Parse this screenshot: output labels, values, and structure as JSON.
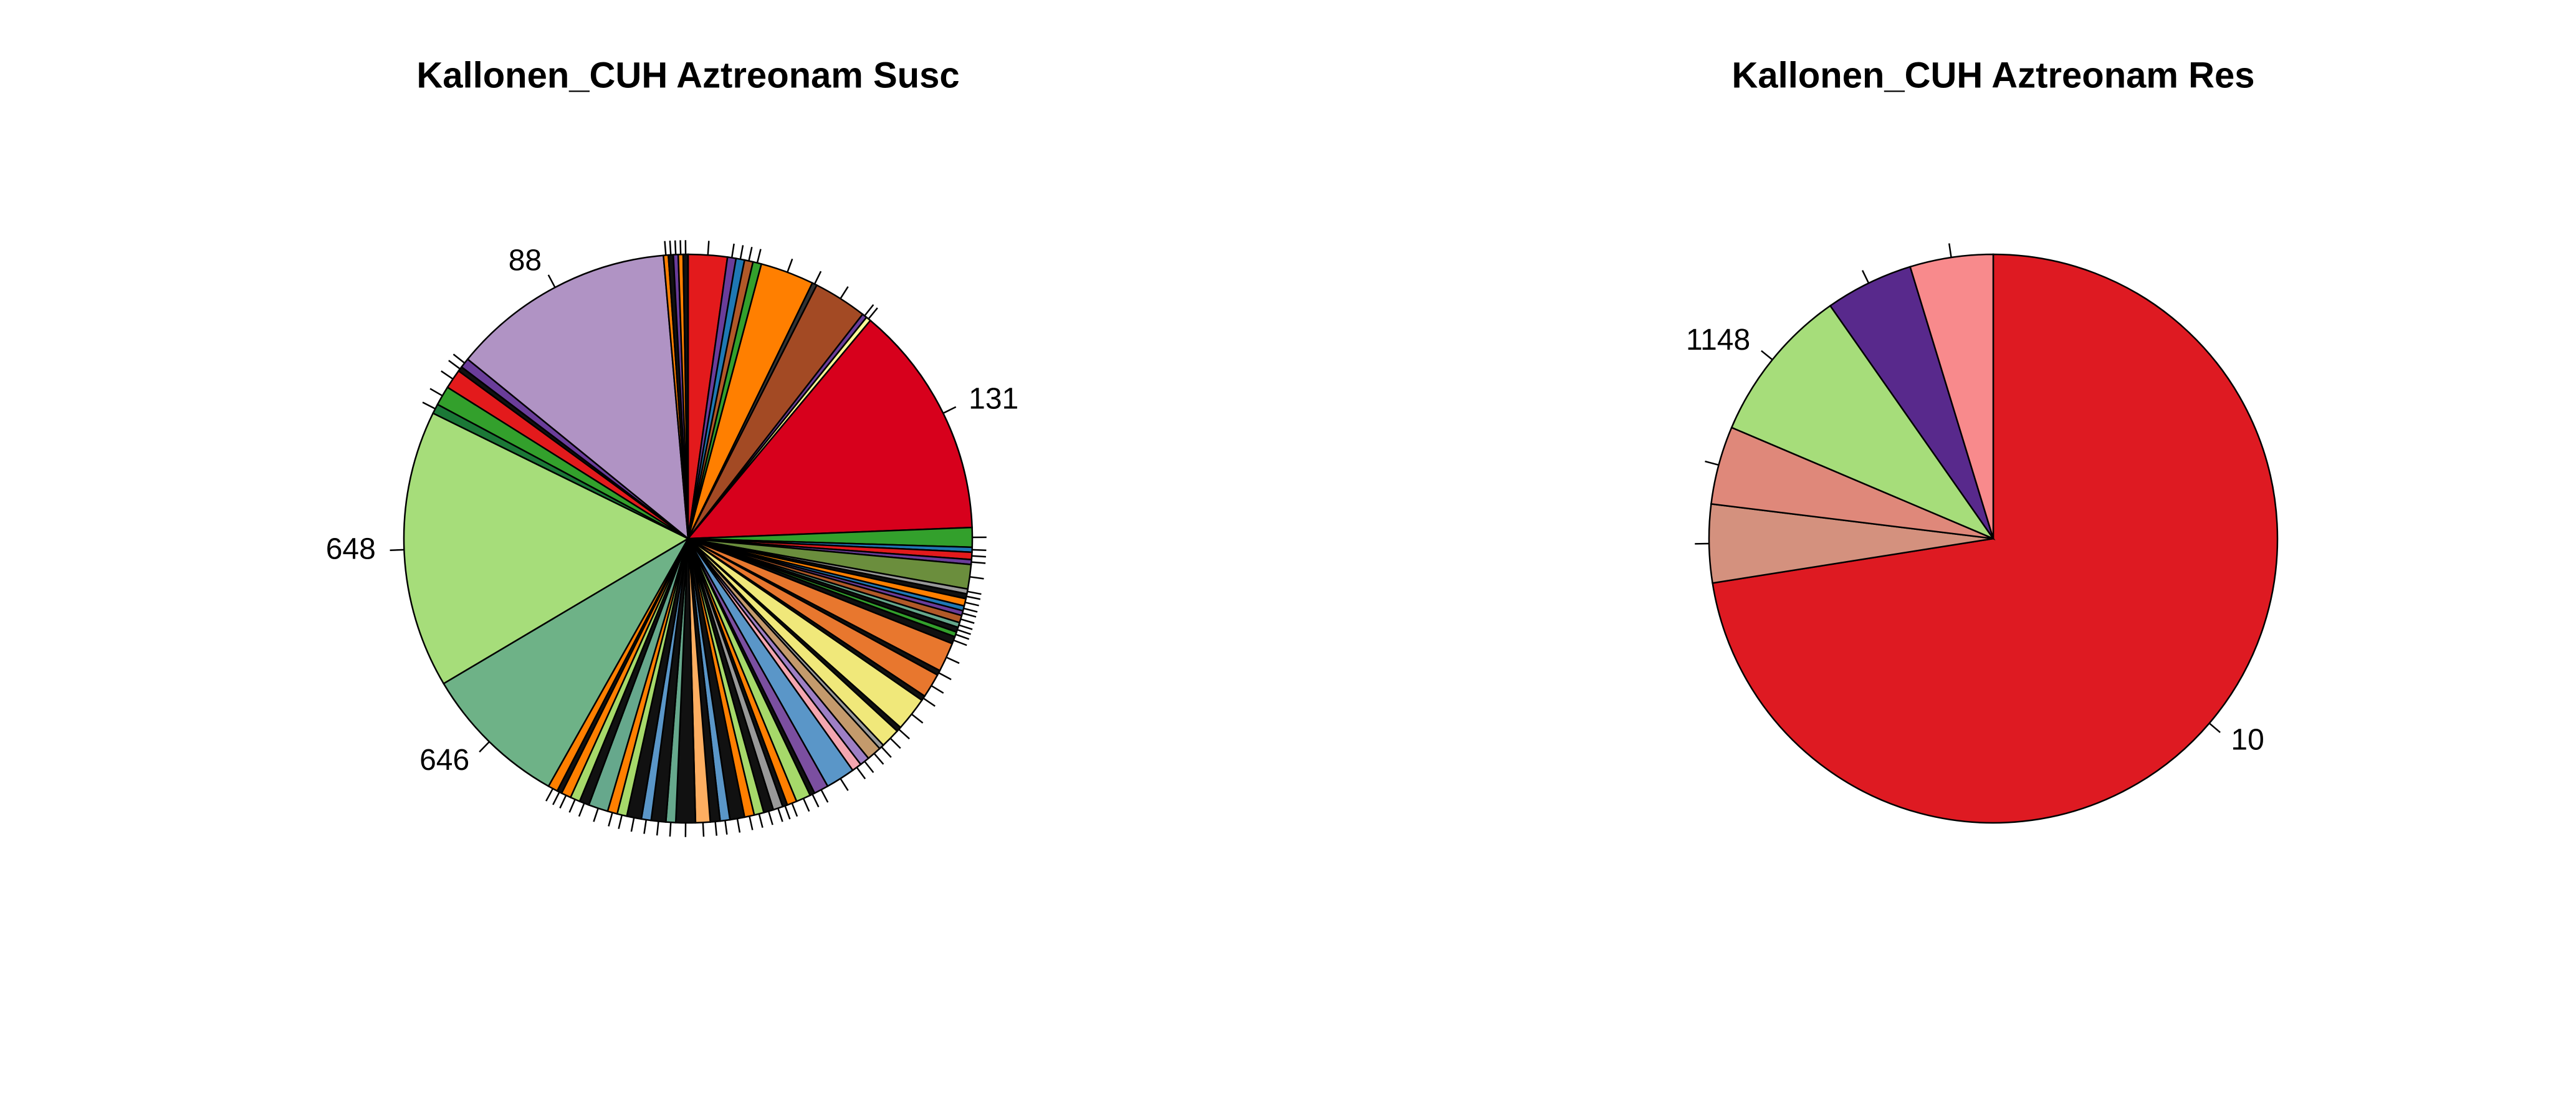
{
  "chart_data": [
    {
      "type": "pie",
      "title": "Kallonen_CUH Aztreonam Susc",
      "categories": [
        null,
        null,
        null,
        null,
        null,
        null,
        null,
        null,
        null,
        null,
        "131",
        null,
        null,
        null,
        null,
        null,
        null,
        null,
        null,
        null,
        null,
        null,
        null,
        null,
        null,
        null,
        null,
        null,
        null,
        null,
        null,
        null,
        null,
        null,
        null,
        null,
        null,
        null,
        null,
        null,
        null,
        null,
        null,
        null,
        null,
        null,
        null,
        null,
        null,
        null,
        null,
        null,
        null,
        null,
        null,
        null,
        null,
        null,
        null,
        null,
        null,
        null,
        null,
        null,
        "646",
        "648",
        null,
        null,
        null,
        null,
        null,
        "88",
        null,
        null,
        null,
        null,
        null
      ],
      "values": [
        8,
        1.75,
        1.75,
        1.75,
        1.75,
        11,
        1,
        11,
        1,
        1,
        48,
        4,
        1,
        1.5,
        1,
        5,
        1,
        1,
        1.5,
        1,
        1,
        1.5,
        1,
        1,
        1,
        1.5,
        6,
        1,
        5,
        1,
        7,
        1,
        4,
        1,
        3,
        2,
        2,
        6,
        3,
        1,
        3,
        2,
        1,
        2,
        2,
        2,
        2,
        3,
        2,
        2,
        3,
        4,
        2,
        3,
        2,
        3,
        2,
        2,
        4,
        2,
        2,
        2,
        1,
        2,
        30,
        57,
        2,
        4,
        4,
        1,
        2,
        46,
        1,
        1,
        1,
        1,
        1
      ],
      "colors": [
        "#e31a1c",
        "#6a3d9a",
        "#1f78b4",
        "#b15928",
        "#33a02c",
        "#ff7f00",
        "#333333",
        "#a34a24",
        "#6a3d9a",
        "#ffff99",
        "#d7001c",
        "#33a02c",
        "#1f78b4",
        "#e31a1c",
        "#6a3d9a",
        "#6b8e3d",
        "#999999",
        "#111111",
        "#ff7f00",
        "#1f78b4",
        "#6a3d9a",
        "#b15928",
        "#66a88c",
        "#111111",
        "#33a02c",
        "#111111",
        "#e8772e",
        "#111111",
        "#e8772e",
        "#111111",
        "#f0e87a",
        "#111111",
        "#f0e87a",
        "#999999",
        "#c49a6c",
        "#9e7fc4",
        "#f4a6b0",
        "#5a96c8",
        "#7b4fa0",
        "#111111",
        "#a6d96a",
        "#ff7f00",
        "#111111",
        "#999999",
        "#111111",
        "#a6d96a",
        "#ff7f00",
        "#111111",
        "#5a96c8",
        "#111111",
        "#fdae61",
        "#111111",
        "#66a88c",
        "#111111",
        "#5a96c8",
        "#111111",
        "#a6d96a",
        "#ff7f00",
        "#66a88c",
        "#111111",
        "#a6d96a",
        "#ff7f00",
        "#111111",
        "#ff7f00",
        "#6eb287",
        "#a6dd7a",
        "#1b7837",
        "#33a02c",
        "#e31a1c",
        "#111111",
        "#6a3d9a",
        "#b093c4",
        "#ff7f00",
        "#111111",
        "#6a3d9a",
        "#ff7f00",
        "#111111"
      ]
    },
    {
      "type": "pie",
      "title": "Kallonen_CUH Aztreonam Res",
      "categories": [
        "10",
        null,
        null,
        "1148",
        null,
        null
      ],
      "values": [
        261,
        16,
        16,
        32,
        18,
        17
      ],
      "colors": [
        "#de1a22",
        "#d4917e",
        "#df887a",
        "#a6dd7a",
        "#58298c",
        "#f88a8c"
      ]
    }
  ]
}
